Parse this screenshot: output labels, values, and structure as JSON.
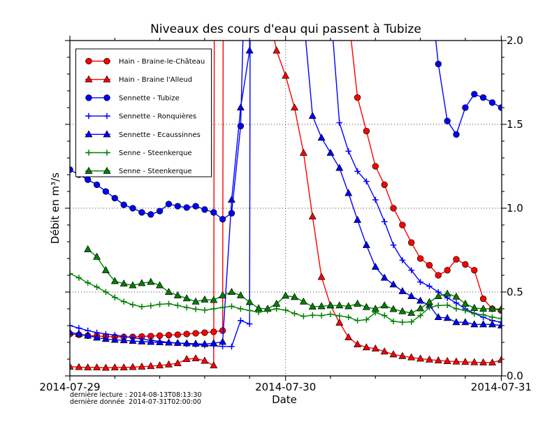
{
  "chart_data": {
    "type": "line",
    "title": "Niveaux des cours d'eau qui passent à Tubize",
    "xlabel": "Date",
    "ylabel": "Débit en m³/s",
    "x_epoch": "2014-07-29T00:00",
    "x_unit": "hours since 2014-07-29 00:00",
    "xlim_hours": [
      0,
      48.05
    ],
    "ylim": [
      0.0,
      2.0
    ],
    "grid": "dotted at major ticks",
    "legend_position": "upper left",
    "x_ticks": {
      "major_hours": [
        0,
        24,
        48
      ],
      "major_labels": [
        "2014-07-29",
        "2014-07-30",
        "2014-07-31"
      ],
      "minor_hours": [
        5,
        10,
        15,
        20,
        29,
        34,
        39,
        44
      ]
    },
    "y_ticks": {
      "major": [
        0.0,
        0.5,
        1.0,
        1.5,
        2.0
      ],
      "major_labels": [
        "0.0",
        "0.5",
        "1.0",
        "1.5",
        "2.0"
      ],
      "minor_step": 0.1
    },
    "offscale_note": "values greater than 2.0 are flood peaks clipped above the top of the axes",
    "series": [
      {
        "label": "Hain - Braine-le-Château",
        "color": "#ff0000",
        "marker": "circle",
        "start_hour": 0,
        "values": [
          0.25,
          0.245,
          0.24,
          0.238,
          0.235,
          0.233,
          0.232,
          0.233,
          0.235,
          0.237,
          0.24,
          0.243,
          0.246,
          0.25,
          0.254,
          0.258,
          0.263,
          0.27,
          30,
          30,
          30,
          30,
          30,
          30,
          30,
          30,
          30,
          30,
          30,
          30,
          30,
          2.15,
          1.66,
          1.46,
          1.25,
          1.14,
          1.0,
          0.9,
          0.795,
          0.7,
          0.66,
          0.6,
          0.63,
          0.695,
          0.665,
          0.63,
          0.46,
          0.4,
          0.39
        ]
      },
      {
        "label": "Hain - Braine l'Alleud",
        "color": "#ff0000",
        "marker": "triangle",
        "start_hour": 0,
        "values": [
          0.055,
          0.052,
          0.05,
          0.05,
          0.048,
          0.05,
          0.05,
          0.052,
          0.055,
          0.058,
          0.062,
          0.068,
          0.075,
          0.1,
          0.104,
          0.09,
          0.062,
          30,
          30,
          30,
          30,
          30,
          2.2,
          1.94,
          1.79,
          1.6,
          1.33,
          0.95,
          0.59,
          0.42,
          0.317,
          0.23,
          0.188,
          0.17,
          0.163,
          0.145,
          0.128,
          0.118,
          0.11,
          0.103,
          0.097,
          0.092,
          0.088,
          0.085,
          0.083,
          0.081,
          0.08,
          0.079,
          0.095
        ]
      },
      {
        "label": "Sennette - Tubize",
        "color": "#0000ff",
        "marker": "circle",
        "start_hour": 0,
        "values": [
          1.23,
          1.2,
          1.17,
          1.14,
          1.1,
          1.06,
          1.02,
          1.0,
          0.975,
          0.963,
          0.983,
          1.025,
          1.012,
          1.004,
          1.012,
          0.992,
          0.975,
          0.934,
          0.97,
          1.49,
          3.5,
          30,
          30,
          30,
          30,
          30,
          30,
          30,
          30,
          30,
          30,
          30,
          30,
          30,
          30,
          30,
          30,
          30,
          30,
          30,
          2.35,
          1.86,
          1.52,
          1.44,
          1.6,
          1.68,
          1.66,
          1.63,
          1.6
        ]
      },
      {
        "label": "Sennette - Ronquières",
        "color": "#0000ff",
        "marker": "plus",
        "start_hour": 0,
        "values": [
          0.3,
          0.285,
          0.27,
          0.258,
          0.25,
          0.243,
          0.235,
          0.228,
          0.22,
          0.213,
          0.206,
          0.2,
          0.196,
          0.19,
          0.187,
          0.183,
          0.179,
          0.176,
          0.175,
          0.33,
          0.31,
          30,
          30,
          30,
          30,
          30,
          30,
          30,
          30,
          2.2,
          1.51,
          1.34,
          1.22,
          1.16,
          1.05,
          0.92,
          0.78,
          0.69,
          0.63,
          0.56,
          0.535,
          0.5,
          0.465,
          0.435,
          0.4,
          0.373,
          0.35,
          0.33,
          0.32
        ]
      },
      {
        "label": "Sennette - Ecaussinnes",
        "color": "#0000ff",
        "marker": "triangle",
        "start_hour": 0,
        "values": [
          0.26,
          0.25,
          0.24,
          0.228,
          0.22,
          0.215,
          0.212,
          0.208,
          0.205,
          0.202,
          0.2,
          0.198,
          0.196,
          0.194,
          0.192,
          0.19,
          0.195,
          0.203,
          1.05,
          1.6,
          1.94,
          30,
          30,
          30,
          30,
          30,
          2.15,
          1.55,
          1.42,
          1.33,
          1.24,
          1.09,
          0.93,
          0.78,
          0.65,
          0.585,
          0.545,
          0.505,
          0.475,
          0.448,
          0.42,
          0.35,
          0.345,
          0.32,
          0.32,
          0.307,
          0.307,
          0.307,
          0.3
        ]
      },
      {
        "label": "Senne - Steenkerque",
        "color": "#008000",
        "marker": "plus",
        "start_hour": 0,
        "values": [
          0.61,
          0.585,
          0.555,
          0.53,
          0.5,
          0.468,
          0.443,
          0.424,
          0.412,
          0.418,
          0.427,
          0.43,
          0.42,
          0.408,
          0.398,
          0.392,
          0.4,
          0.408,
          0.415,
          0.4,
          0.39,
          0.38,
          0.39,
          0.4,
          0.392,
          0.372,
          0.355,
          0.362,
          0.36,
          0.368,
          0.358,
          0.35,
          0.33,
          0.335,
          0.378,
          0.36,
          0.325,
          0.32,
          0.322,
          0.36,
          0.408,
          0.42,
          0.422,
          0.4,
          0.39,
          0.37,
          0.365,
          0.35,
          0.342
        ]
      },
      {
        "label": "Senne - Steenkerque",
        "color": "#008000",
        "marker": "triangle",
        "start_hour": 2,
        "values": [
          0.755,
          0.71,
          0.63,
          0.565,
          0.55,
          0.54,
          0.553,
          0.56,
          0.54,
          0.5,
          0.48,
          0.462,
          0.443,
          0.455,
          0.452,
          0.48,
          0.5,
          0.48,
          0.44,
          0.403,
          0.4,
          0.43,
          0.478,
          0.47,
          0.443,
          0.413,
          0.415,
          0.42,
          0.42,
          0.415,
          0.43,
          0.41,
          0.4,
          0.42,
          0.398,
          0.385,
          0.375,
          0.402,
          0.44,
          0.475,
          0.49,
          0.472,
          0.43,
          0.405,
          0.4,
          0.4,
          0.398
        ]
      }
    ]
  },
  "footer": {
    "line1": "dernière lecture : 2014-08-13T08:13:30",
    "line2": "dernière donnée  2014-07-31T02:00:00"
  }
}
